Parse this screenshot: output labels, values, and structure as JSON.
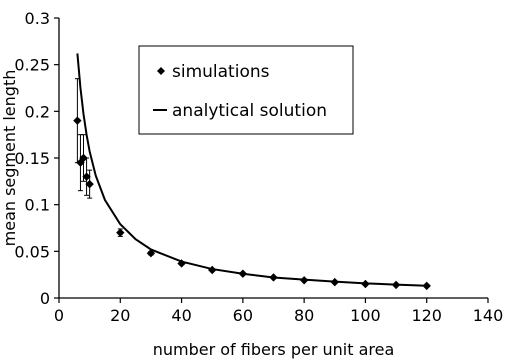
{
  "chart_data": {
    "type": "scatter",
    "title": "",
    "xlabel": "number of fibers per unit area",
    "ylabel": "mean segment length",
    "xlim": [
      0,
      140
    ],
    "ylim": [
      0,
      0.3
    ],
    "x_ticks": [
      0,
      20,
      40,
      60,
      80,
      100,
      120,
      140
    ],
    "x_tick_labels": [
      "0",
      "20",
      "40",
      "60",
      "80",
      "100",
      "120",
      "140"
    ],
    "y_ticks": [
      0,
      0.05,
      0.1,
      0.15,
      0.2,
      0.25,
      0.3
    ],
    "y_tick_labels": [
      "0",
      "0.05",
      "0.1",
      "0.15",
      "0.2",
      "0.25",
      "0.3"
    ],
    "grid": false,
    "legend_placement": "top-right",
    "series": [
      {
        "name": "simulations",
        "kind": "points",
        "marker": "diamond",
        "color": "#000000",
        "points": [
          {
            "x": 6,
            "y": 0.19,
            "err": 0.045
          },
          {
            "x": 7,
            "y": 0.145,
            "err": 0.03
          },
          {
            "x": 8,
            "y": 0.15,
            "err": 0.025
          },
          {
            "x": 9,
            "y": 0.13,
            "err": 0.02
          },
          {
            "x": 10,
            "y": 0.122,
            "err": 0.015
          },
          {
            "x": 20,
            "y": 0.07,
            "err": 0.004
          },
          {
            "x": 30,
            "y": 0.048,
            "err": 0.002
          },
          {
            "x": 40,
            "y": 0.037,
            "err": 0
          },
          {
            "x": 50,
            "y": 0.03,
            "err": 0
          },
          {
            "x": 60,
            "y": 0.026,
            "err": 0
          },
          {
            "x": 70,
            "y": 0.022,
            "err": 0
          },
          {
            "x": 80,
            "y": 0.019,
            "err": 0
          },
          {
            "x": 90,
            "y": 0.017,
            "err": 0
          },
          {
            "x": 100,
            "y": 0.015,
            "err": 0
          },
          {
            "x": 110,
            "y": 0.014,
            "err": 0
          },
          {
            "x": 120,
            "y": 0.013,
            "err": 0
          }
        ]
      },
      {
        "name": "analytical solution",
        "kind": "line",
        "color": "#000000",
        "points": [
          {
            "x": 6,
            "y": 0.262
          },
          {
            "x": 7,
            "y": 0.225
          },
          {
            "x": 8,
            "y": 0.197
          },
          {
            "x": 9,
            "y": 0.175
          },
          {
            "x": 10,
            "y": 0.157
          },
          {
            "x": 12,
            "y": 0.131
          },
          {
            "x": 15,
            "y": 0.105
          },
          {
            "x": 20,
            "y": 0.079
          },
          {
            "x": 25,
            "y": 0.063
          },
          {
            "x": 30,
            "y": 0.052
          },
          {
            "x": 40,
            "y": 0.039
          },
          {
            "x": 50,
            "y": 0.031
          },
          {
            "x": 60,
            "y": 0.026
          },
          {
            "x": 70,
            "y": 0.022
          },
          {
            "x": 80,
            "y": 0.0197
          },
          {
            "x": 90,
            "y": 0.0175
          },
          {
            "x": 100,
            "y": 0.0157
          },
          {
            "x": 110,
            "y": 0.0143
          },
          {
            "x": 120,
            "y": 0.0131
          }
        ]
      }
    ]
  }
}
